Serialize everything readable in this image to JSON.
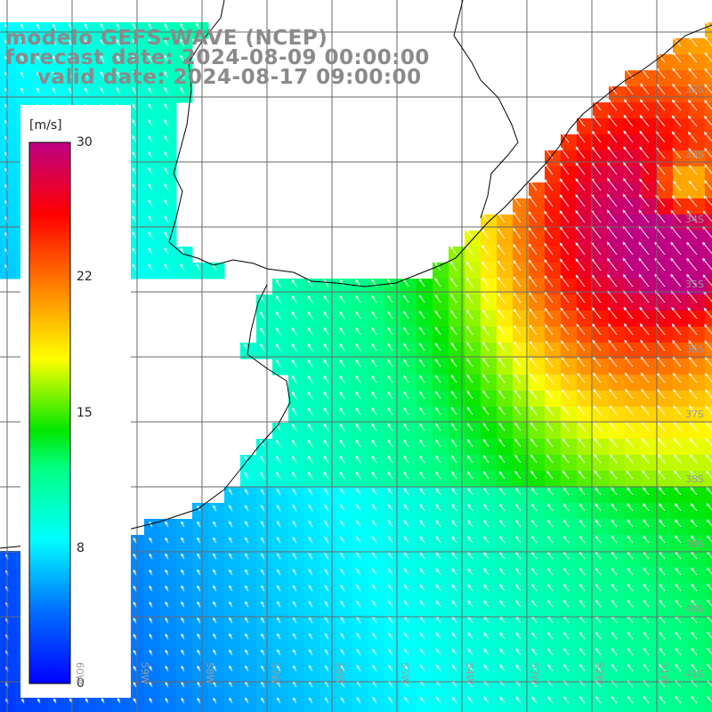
{
  "title": {
    "line1": "modelo GEFS-WAVE (NCEP)",
    "line2": "forecast date: 2024-08-09 00:00:00",
    "line3": "valid date: 2024-08-17 09:00:00"
  },
  "colorbar": {
    "unit": "[m/s]",
    "ticks": [
      "30",
      "22",
      "15",
      "8",
      "0"
    ],
    "min": 0,
    "max": 30,
    "colors": [
      "#0000ff",
      "#0090ff",
      "#00ffff",
      "#00ff00",
      "#ffff00",
      "#ff8000",
      "#ff0000",
      "#c00080"
    ]
  },
  "axes": {
    "lat_labels": [
      "32S",
      "33S",
      "34S",
      "35S",
      "36S",
      "37S",
      "38S",
      "39S",
      "40S",
      "41S"
    ],
    "lon_labels": [
      "60W",
      "59W",
      "58W",
      "57W",
      "56W",
      "55W",
      "54W",
      "53W",
      "52W",
      "51W"
    ]
  },
  "colors": {
    "title_gray": "#8a8a8a",
    "grid": "#707070",
    "coast": "#000000",
    "arrow": "#ffffff"
  },
  "field_description": "wind speed colored grid with white direction arrows"
}
